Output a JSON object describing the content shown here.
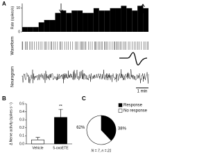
{
  "panel_labels": [
    "A",
    "B",
    "C"
  ],
  "traces": {
    "waveform_label": "Waveform",
    "neurogram_label": "Neurogram",
    "scale_bar": "1 min"
  },
  "chart_data": [
    {
      "type": "bar",
      "ylabel": "Rate (spikes/s)",
      "values": [
        2,
        2,
        2,
        4,
        5,
        5,
        8,
        9,
        8,
        9,
        9,
        8,
        8,
        10,
        9,
        9,
        10,
        10,
        11,
        10,
        9,
        11,
        10
      ],
      "color": "#000000",
      "ylim": [
        0,
        12
      ],
      "yticks": [
        0,
        10
      ]
    },
    {
      "type": "bar",
      "ylabel": "Δ Nerve activity (spikes s⁻¹)",
      "categories": [
        "Vehicle",
        "5-oxoETE"
      ],
      "values": [
        0.05,
        0.33
      ],
      "errors": [
        0.03,
        0.1
      ],
      "colors": [
        "#ffffff",
        "#000000"
      ],
      "ylim": [
        0,
        0.5
      ],
      "yticks": [
        {
          "value": 0,
          "label": "0.0"
        },
        {
          "value": 0.1,
          "label": "0.1"
        },
        {
          "value": 0.2,
          "label": "0.2"
        },
        {
          "value": 0.3,
          "label": "0.3"
        },
        {
          "value": 0.4,
          "label": "0.4"
        },
        {
          "value": 0.5,
          "label": "0.5"
        }
      ],
      "annotation": "**"
    },
    {
      "type": "pie",
      "categories": [
        "Response",
        "No response"
      ],
      "values": [
        38,
        62
      ],
      "value_labels": [
        "38%",
        "62%"
      ],
      "colors": [
        "#000000",
        "#ffffff"
      ],
      "note": "N = 7, n = 21"
    }
  ]
}
